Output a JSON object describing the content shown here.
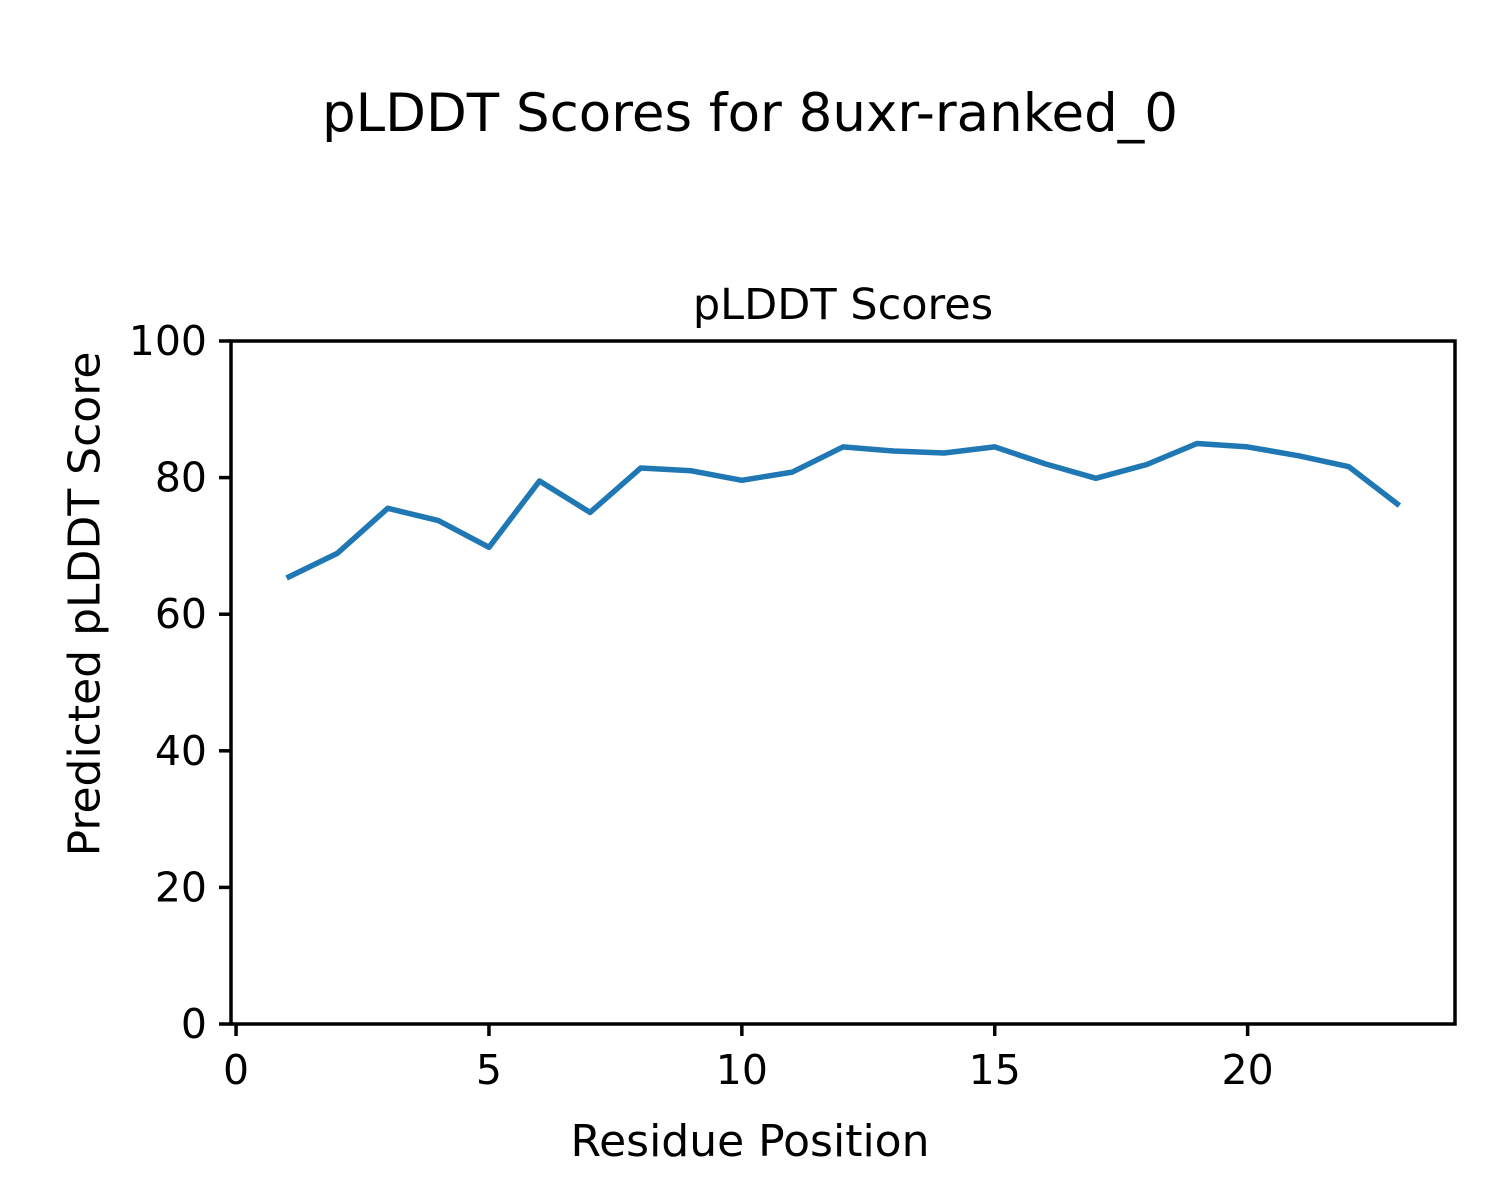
{
  "figure": {
    "title": "pLDDT Scores for 8uxr-ranked_0"
  },
  "chart_data": {
    "type": "line",
    "title": "pLDDT Scores",
    "xlabel": "Residue Position",
    "ylabel": "Predicted pLDDT Score",
    "x": [
      1,
      2,
      3,
      4,
      5,
      6,
      7,
      8,
      9,
      10,
      11,
      12,
      13,
      14,
      15,
      16,
      17,
      18,
      19,
      20,
      21,
      22,
      23
    ],
    "y": [
      65.3,
      68.9,
      75.5,
      73.7,
      69.8,
      79.5,
      74.9,
      81.4,
      81.0,
      79.6,
      80.8,
      84.5,
      83.9,
      83.6,
      84.5,
      82.0,
      79.9,
      81.9,
      85.0,
      84.5,
      83.2,
      81.6,
      75.9
    ],
    "xlim": [
      -0.1,
      24.1
    ],
    "ylim": [
      0,
      100
    ],
    "xticks": [
      0,
      5,
      10,
      15,
      20
    ],
    "yticks": [
      0,
      20,
      40,
      60,
      80,
      100
    ],
    "line_color": "#1f77b4",
    "axis_color": "#000000",
    "tick_label_fontsize": 41,
    "grid": false,
    "legend": null
  }
}
